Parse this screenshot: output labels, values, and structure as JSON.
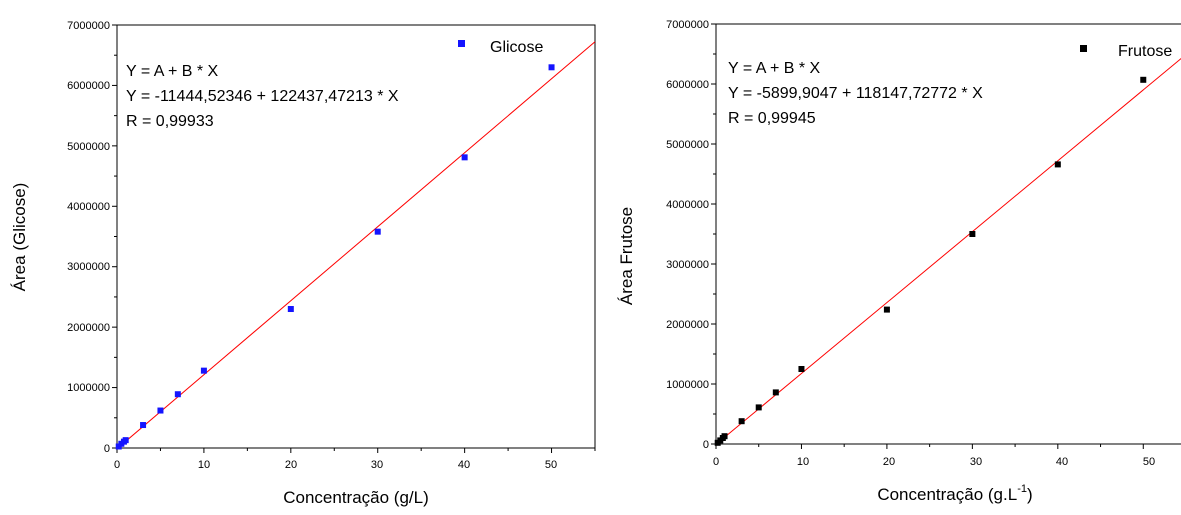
{
  "chart_data": [
    {
      "type": "scatter",
      "xlabel": "Concentração (g/L)",
      "ylabel": "Área (Glicose)",
      "xlim": [
        0,
        55
      ],
      "ylim": [
        0,
        7000000
      ],
      "x_ticks": [
        "0",
        "10",
        "20",
        "30",
        "40",
        "50"
      ],
      "y_ticks": [
        "0",
        "1000000",
        "2000000",
        "3000000",
        "4000000",
        "5000000",
        "6000000",
        "7000000"
      ],
      "series": [
        {
          "name": "Glicose",
          "color": "#1414ff",
          "marker": "square",
          "points": [
            {
              "x": 0.2,
              "y": 25000
            },
            {
              "x": 0.5,
              "y": 70000
            },
            {
              "x": 0.8,
              "y": 105000
            },
            {
              "x": 1.0,
              "y": 130000
            },
            {
              "x": 3.0,
              "y": 380000
            },
            {
              "x": 5.0,
              "y": 620000
            },
            {
              "x": 7.0,
              "y": 890000
            },
            {
              "x": 10.0,
              "y": 1280000
            },
            {
              "x": 20.0,
              "y": 2300000
            },
            {
              "x": 30.0,
              "y": 3580000
            },
            {
              "x": 40.0,
              "y": 4810000
            },
            {
              "x": 50.0,
              "y": 6300000
            }
          ]
        }
      ],
      "fit": {
        "intercept": -11444.52346,
        "slope": 122437.47213,
        "color": "#ff0000"
      },
      "annotation": [
        "Y = A + B * X",
        "Y = -11444,52346 + 122437,47213 * X",
        "R = 0,99933"
      ],
      "legend_position": "top-right",
      "grid": false
    },
    {
      "type": "scatter",
      "xlabel_main": "Concentração (g.L",
      "xlabel_sup": "-1",
      "xlabel_end": ")",
      "ylabel": "Área Frutose",
      "xlim": [
        0,
        55
      ],
      "ylim": [
        0,
        7000000
      ],
      "x_ticks": [
        "0",
        "10",
        "20",
        "30",
        "40",
        "50"
      ],
      "y_ticks": [
        "0",
        "1000000",
        "2000000",
        "3000000",
        "4000000",
        "5000000",
        "6000000",
        "7000000"
      ],
      "series": [
        {
          "name": "Frutose",
          "color": "#000000",
          "marker": "square",
          "points": [
            {
              "x": 0.2,
              "y": 20000
            },
            {
              "x": 0.5,
              "y": 60000
            },
            {
              "x": 0.8,
              "y": 100000
            },
            {
              "x": 1.0,
              "y": 130000
            },
            {
              "x": 3.0,
              "y": 380000
            },
            {
              "x": 5.0,
              "y": 610000
            },
            {
              "x": 7.0,
              "y": 860000
            },
            {
              "x": 10.0,
              "y": 1250000
            },
            {
              "x": 20.0,
              "y": 2240000
            },
            {
              "x": 30.0,
              "y": 3500000
            },
            {
              "x": 40.0,
              "y": 4660000
            },
            {
              "x": 50.0,
              "y": 6070000
            }
          ]
        }
      ],
      "fit": {
        "intercept": -5899.9047,
        "slope": 118147.72772,
        "color": "#ff0000"
      },
      "annotation": [
        "Y = A + B * X",
        "Y = -5899,9047 + 118147,72772 * X",
        "R = 0,99945"
      ],
      "legend_position": "top-right",
      "grid": false
    }
  ]
}
